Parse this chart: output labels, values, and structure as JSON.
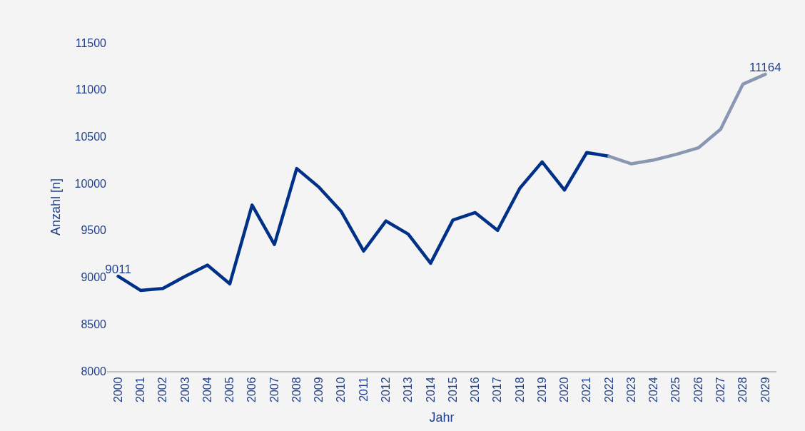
{
  "chart_data": {
    "type": "line",
    "xlabel": "Jahr",
    "ylabel": "Anzahl [n]",
    "categories": [
      "2000",
      "2001",
      "2002",
      "2003",
      "2004",
      "2005",
      "2006",
      "2007",
      "2008",
      "2009",
      "2010",
      "2011",
      "2012",
      "2013",
      "2014",
      "2015",
      "2016",
      "2017",
      "2018",
      "2019",
      "2020",
      "2021",
      "2022",
      "2023",
      "2024",
      "2025",
      "2026",
      "2027",
      "2028",
      "2029"
    ],
    "series": [
      {
        "color": "#003087",
        "values": [
          9011,
          8860,
          8880,
          9010,
          9130,
          8930,
          9770,
          9350,
          10160,
          9960,
          9700,
          9280,
          9600,
          9460,
          9150,
          9610,
          9690,
          9500,
          9950,
          10230,
          9930,
          10330,
          10290,
          null,
          null,
          null,
          null,
          null,
          null,
          null
        ],
        "value_labels": [
          "9011",
          null,
          null,
          null,
          null,
          null,
          null,
          null,
          null,
          null,
          null,
          null,
          null,
          null,
          null,
          null,
          null,
          null,
          null,
          null,
          null,
          null,
          null,
          null,
          null,
          null,
          null,
          null,
          null,
          null
        ]
      },
      {
        "color": "#8a97b2",
        "values": [
          null,
          null,
          null,
          null,
          null,
          null,
          null,
          null,
          null,
          null,
          null,
          null,
          null,
          null,
          null,
          null,
          null,
          null,
          null,
          null,
          null,
          null,
          10290,
          10210,
          10250,
          10310,
          10380,
          10580,
          11060,
          11164
        ],
        "value_labels": [
          null,
          null,
          null,
          null,
          null,
          null,
          null,
          null,
          null,
          null,
          null,
          null,
          null,
          null,
          null,
          null,
          null,
          null,
          null,
          null,
          null,
          null,
          null,
          null,
          null,
          null,
          null,
          null,
          null,
          "11164"
        ]
      }
    ],
    "ylim": [
      8000,
      11500
    ],
    "yticks": [
      8000,
      8500,
      9000,
      9500,
      10000,
      10500,
      11000,
      11500
    ],
    "grid": false
  }
}
